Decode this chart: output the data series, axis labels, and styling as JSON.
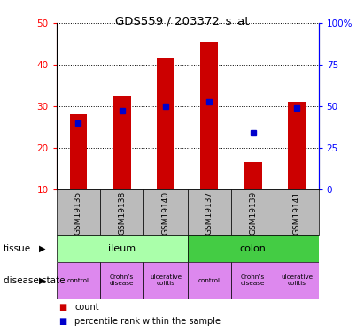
{
  "title": "GDS559 / 203372_s_at",
  "samples": [
    "GSM19135",
    "GSM19138",
    "GSM19140",
    "GSM19137",
    "GSM19139",
    "GSM19141"
  ],
  "counts": [
    28,
    32.5,
    41.5,
    45.5,
    16.5,
    31
  ],
  "percentile_ranks_left_scale": [
    26,
    29,
    30,
    31,
    23.5,
    29.5
  ],
  "ylim_left": [
    10,
    50
  ],
  "yticks_left": [
    10,
    20,
    30,
    40,
    50
  ],
  "yticks_right": [
    0,
    25,
    50,
    75,
    100
  ],
  "ytick_labels_right": [
    "0",
    "25",
    "50",
    "75",
    "100%"
  ],
  "bar_color": "#cc0000",
  "dot_color": "#0000cc",
  "tissue_data": [
    {
      "label": "ileum",
      "start": 0,
      "end": 3,
      "color": "#aaffaa"
    },
    {
      "label": "colon",
      "start": 3,
      "end": 6,
      "color": "#44cc44"
    }
  ],
  "disease_labels": [
    "control",
    "Crohn’s\ndisease",
    "ulcerative\ncolitis",
    "control",
    "Crohn’s\ndisease",
    "ulcerative\ncolitis"
  ],
  "disease_color": "#dd88ee",
  "sample_bg_color": "#bbbbbb",
  "bar_width": 0.4,
  "fig_bg": "#ffffff"
}
